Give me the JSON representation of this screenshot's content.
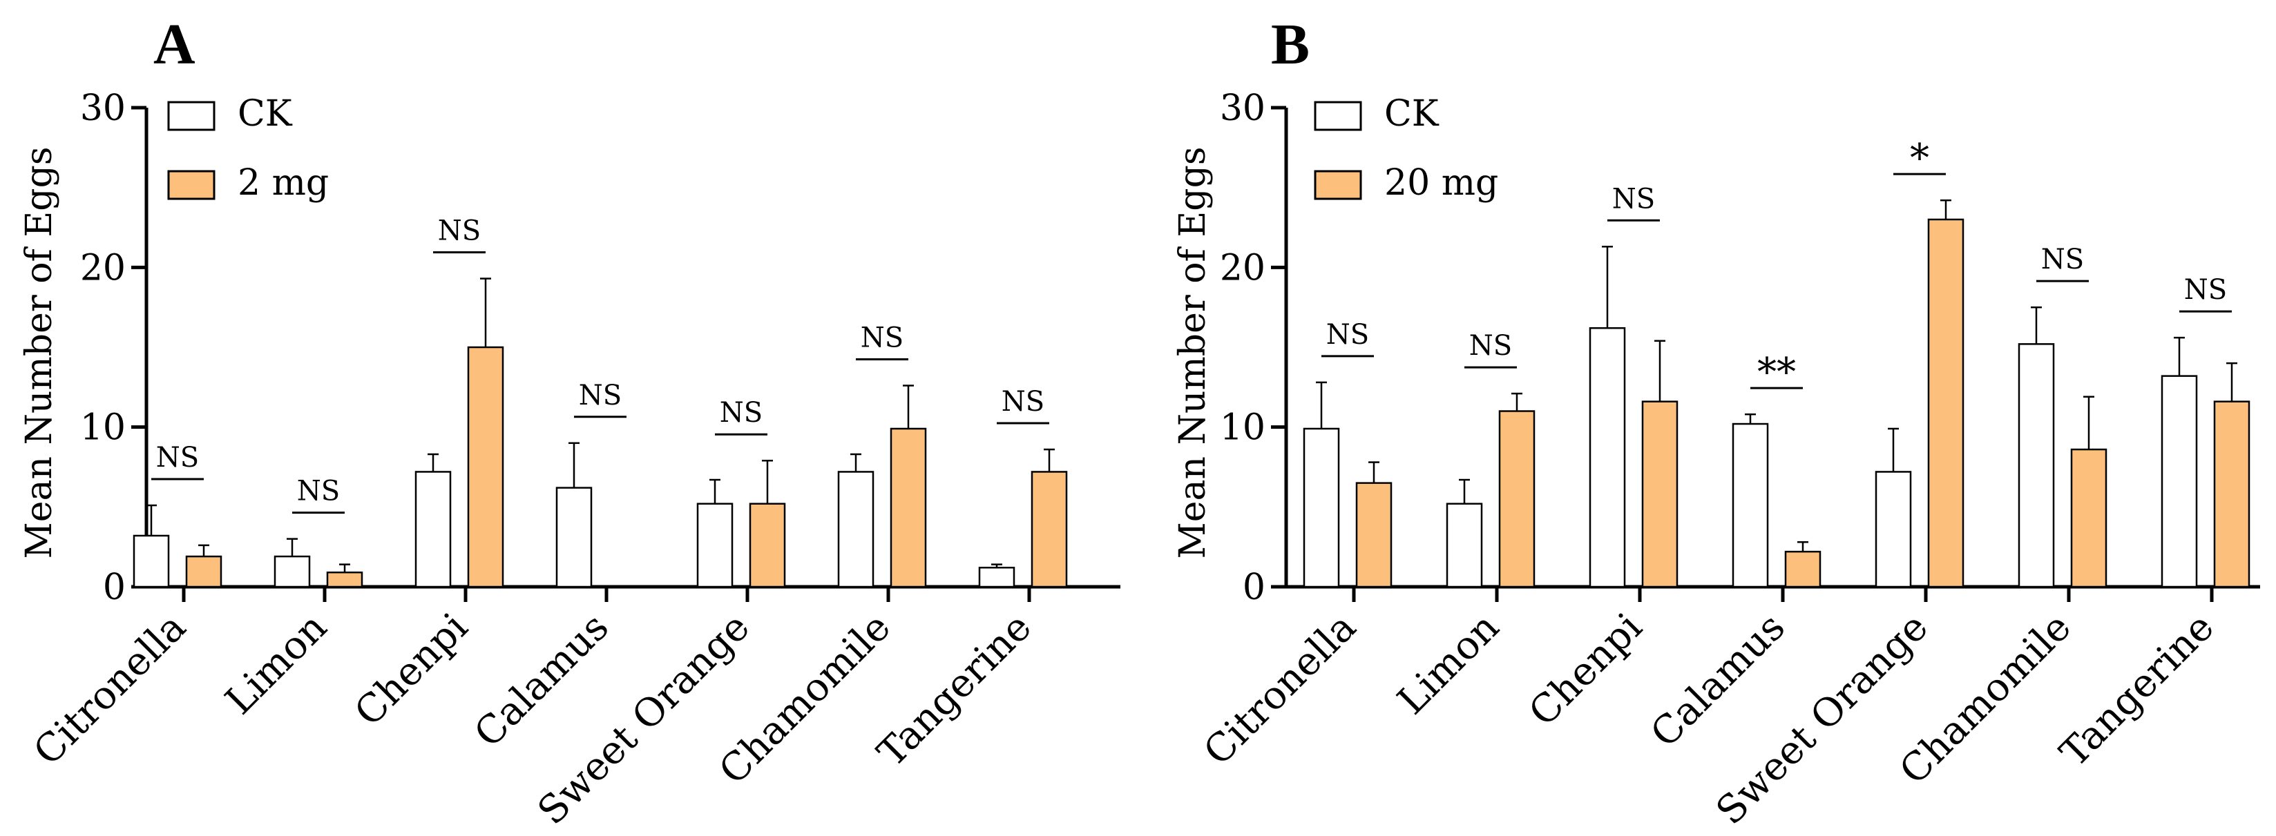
{
  "colors": {
    "ck": "#ffffff",
    "treat": "#fcc07c",
    "stroke": "#000000"
  },
  "chart_data": [
    {
      "type": "bar",
      "panel": "A",
      "ylabel": "Mean Number of Eggs",
      "ylim": [
        0,
        30
      ],
      "yticks": [
        0,
        10,
        20,
        30
      ],
      "categories": [
        "Citronella",
        "Limon",
        "Chenpi",
        "Calamus",
        "Sweet Orange",
        "Chamomile",
        "Tangerine"
      ],
      "series": [
        {
          "name": "CK",
          "values": [
            3.2,
            1.9,
            7.2,
            6.2,
            5.2,
            7.2,
            1.2
          ],
          "errors": [
            1.9,
            1.1,
            1.1,
            2.8,
            1.5,
            1.1,
            0.2
          ]
        },
        {
          "name": "2 mg",
          "values": [
            1.9,
            0.9,
            15.0,
            0,
            5.2,
            9.9,
            7.2
          ],
          "errors": [
            0.7,
            0.5,
            4.3,
            0,
            2.7,
            2.7,
            1.4
          ]
        }
      ],
      "significance": [
        "NS",
        "NS",
        "NS",
        "NS",
        "NS",
        "NS",
        "NS"
      ],
      "legend": [
        "CK",
        "2 mg"
      ],
      "legend_position": "top-left"
    },
    {
      "type": "bar",
      "panel": "B",
      "ylabel": "Mean Number of Eggs",
      "ylim": [
        0,
        30
      ],
      "yticks": [
        0,
        10,
        20,
        30
      ],
      "categories": [
        "Citronella",
        "Limon",
        "Chenpi",
        "Calamus",
        "Sweet Orange",
        "Chamomile",
        "Tangerine"
      ],
      "series": [
        {
          "name": "CK",
          "values": [
            9.9,
            5.2,
            16.2,
            10.2,
            7.2,
            15.2,
            13.2
          ],
          "errors": [
            2.9,
            1.5,
            5.1,
            0.6,
            2.7,
            2.3,
            2.4
          ]
        },
        {
          "name": "20 mg",
          "values": [
            6.5,
            11.0,
            11.6,
            2.2,
            23.0,
            8.6,
            11.6
          ],
          "errors": [
            1.3,
            1.1,
            3.8,
            0.6,
            1.2,
            3.3,
            2.4
          ]
        }
      ],
      "significance": [
        "NS",
        "NS",
        "NS",
        "**",
        "*",
        "NS",
        "NS"
      ],
      "legend": [
        "CK",
        "20 mg"
      ],
      "legend_position": "top-left"
    }
  ]
}
